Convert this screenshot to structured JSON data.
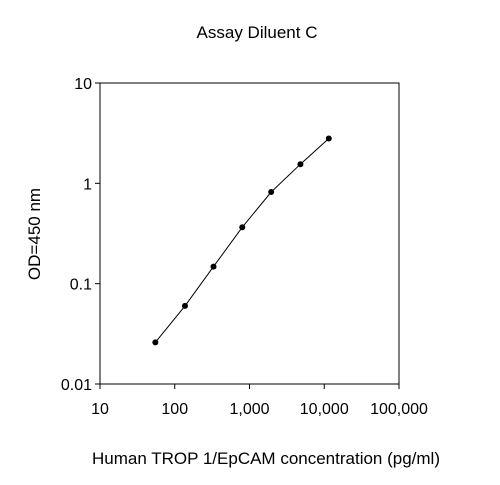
{
  "chart_data": {
    "type": "line",
    "title": "Assay Diluent C",
    "xlabel": "Human TROP 1/EpCAM concentration (pg/ml)",
    "ylabel": "OD=450 nm",
    "x_scale": "log",
    "y_scale": "log",
    "xlim": [
      10,
      100000
    ],
    "ylim": [
      0.01,
      10
    ],
    "x_ticks": [
      10,
      100,
      1000,
      10000,
      100000
    ],
    "x_tick_labels": [
      "10",
      "100",
      "1,000",
      "10,000",
      "100,000"
    ],
    "y_ticks": [
      10,
      1,
      0.1,
      0.01
    ],
    "y_tick_labels": [
      "10",
      "1",
      "0.1",
      "0.01"
    ],
    "grid": false,
    "legend": "none",
    "series": [
      {
        "x": [
          55,
          137,
          330,
          800,
          1950,
          4800,
          11500
        ],
        "y": [
          0.026,
          0.06,
          0.148,
          0.365,
          0.82,
          1.55,
          2.8
        ],
        "color": "#000000",
        "marker": "circle"
      }
    ]
  }
}
